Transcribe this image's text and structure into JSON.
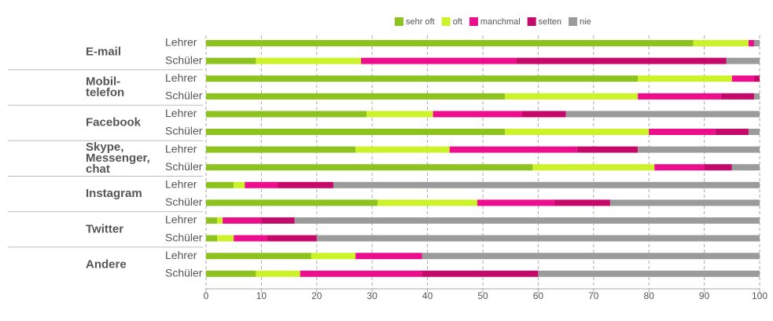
{
  "chart_data": {
    "type": "stacked-bar-horizontal",
    "categories": [
      "Lehrer",
      "Schüler",
      "Lehrer",
      "Schüler",
      "Lehrer",
      "Schüler",
      "Lehrer",
      "Schüler",
      "Lehrer",
      "Schüler",
      "Lehrer",
      "Schüler",
      "Lehrer",
      "Schüler"
    ],
    "groups": [
      {
        "name": [
          "E-mail"
        ]
      },
      {
        "name": [
          "Mobil-",
          "telefon"
        ]
      },
      {
        "name": [
          "Facebook"
        ]
      },
      {
        "name": [
          "Skype,",
          "Messenger,",
          "chat"
        ]
      },
      {
        "name": [
          "Instagram"
        ]
      },
      {
        "name": [
          "Twitter"
        ]
      },
      {
        "name": [
          "Andere"
        ]
      }
    ],
    "series": [
      {
        "name": "sehr oft",
        "color": "#8dc21f",
        "values": [
          88,
          9,
          78,
          54,
          29,
          54,
          27,
          59,
          5,
          31,
          2,
          2,
          19,
          9
        ]
      },
      {
        "name": "oft",
        "color": "#ccf22a",
        "values": [
          10,
          19,
          17,
          24,
          12,
          26,
          17,
          22,
          2,
          18,
          1,
          3,
          8,
          8
        ]
      },
      {
        "name": "manchmal",
        "color": "#ec0e8c",
        "values": [
          1,
          28,
          4,
          15,
          16,
          12,
          23,
          9,
          6,
          14,
          7,
          6,
          12,
          22
        ]
      },
      {
        "name": "selten",
        "color": "#c5096b",
        "values": [
          0,
          38,
          1,
          6,
          8,
          6,
          11,
          5,
          10,
          10,
          6,
          9,
          0,
          21
        ]
      },
      {
        "name": "nie",
        "color": "#9b9b9b",
        "values": [
          1,
          6,
          0,
          1,
          35,
          2,
          22,
          5,
          77,
          27,
          84,
          80,
          61,
          40
        ]
      }
    ],
    "xlim": [
      0,
      100
    ],
    "xticks": [
      0,
      10,
      20,
      30,
      40,
      50,
      60,
      70,
      80,
      90,
      100
    ],
    "grid": true
  }
}
